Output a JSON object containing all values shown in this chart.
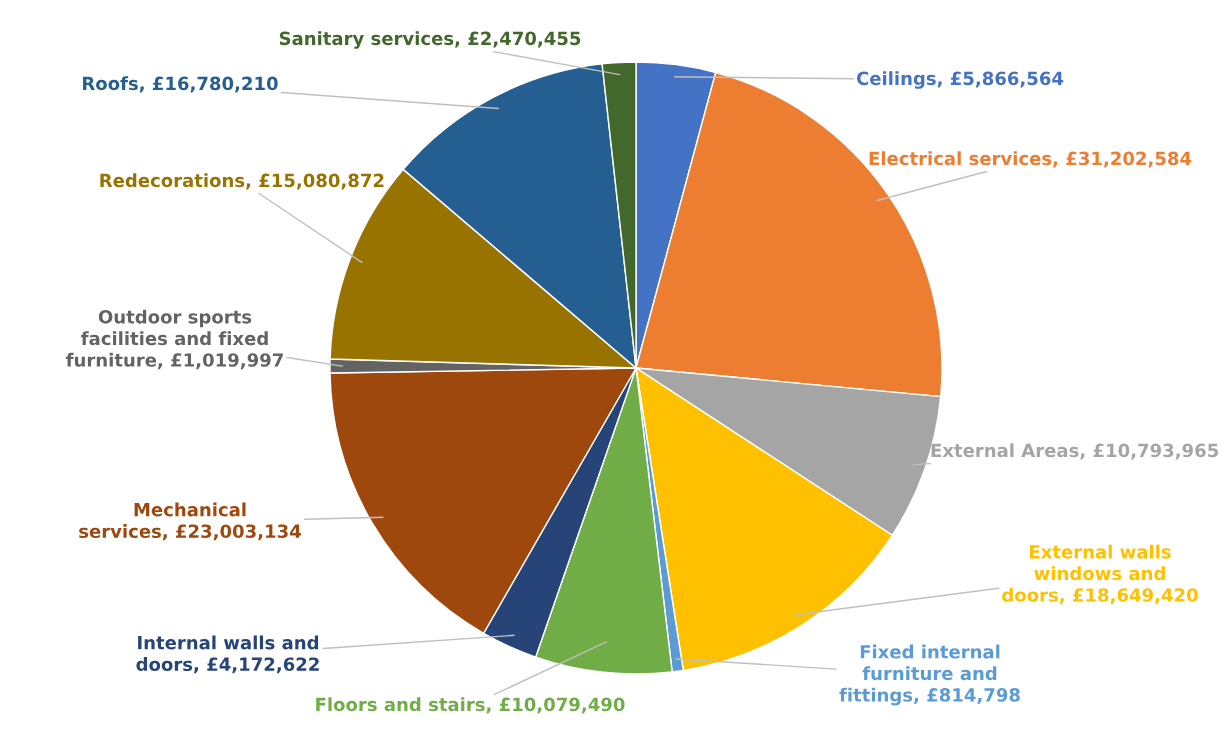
{
  "chart_data": {
    "type": "pie",
    "categories": [
      "Ceilings",
      "Electrical services",
      "External Areas",
      "External walls\nwindows and\ndoors",
      "Fixed internal\nfurniture and\nfittings",
      "Floors and stairs",
      "Internal walls and\ndoors",
      "Mechanical\nservices",
      "Outdoor sports\nfacilities and fixed\nfurniture",
      "Redecorations",
      "Roofs",
      "Sanitary services"
    ],
    "values": [
      5866564,
      31202584,
      10793965,
      18649420,
      814798,
      10079490,
      4172622,
      23003134,
      1019997,
      15080872,
      16780210,
      2470455
    ],
    "value_labels": [
      "£5,866,564",
      "£31,202,584",
      "£10,793,965",
      "£18,649,420",
      "£814,798",
      "£10,079,490",
      "£4,172,622",
      "£23,003,134",
      "£1,019,997",
      "£15,080,872",
      "£16,780,210",
      "£2,470,455"
    ],
    "colors": [
      "#4472c4",
      "#ed7d31",
      "#a5a5a5",
      "#ffc000",
      "#5b9bd5",
      "#70ad47",
      "#264478",
      "#9e480e",
      "#636363",
      "#997300",
      "#255e91",
      "#43682b"
    ]
  }
}
